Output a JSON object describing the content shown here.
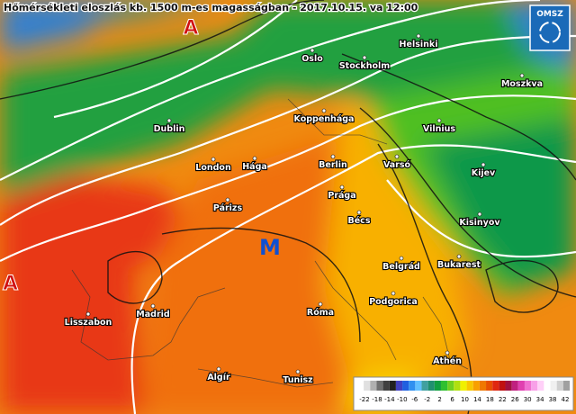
{
  "title": "Hőmérsékleti eloszlás kb. 1500 m-es magasságban - 2017.10.15. va 12:00",
  "logo": "OMSZ",
  "pressure_marks": {
    "highs": [
      "A",
      "A"
    ],
    "low": "M"
  },
  "cities": [
    "Helsinki",
    "Oslo",
    "Stockholm",
    "Moszkva",
    "Koppenhága",
    "Dublin",
    "Vilnius",
    "London",
    "Hága",
    "Berlin",
    "Varsó",
    "Kijev",
    "Prága",
    "Párizs",
    "Bécs",
    "Kisinyov",
    "Belgrád",
    "Bukarest",
    "Lisszabon",
    "Madrid",
    "Podgorica",
    "Róma",
    "Athén",
    "Algír",
    "Tunisz"
  ],
  "legend": {
    "labels": [
      -22,
      -18,
      -14,
      -10,
      -6,
      -2,
      2,
      6,
      10,
      14,
      18,
      22,
      26,
      30,
      34,
      38,
      42
    ],
    "colors": [
      "#ffffff",
      "#e0e0e0",
      "#b0b0b0",
      "#707070",
      "#404040",
      "#202020",
      "#4040c0",
      "#2060e0",
      "#3090f0",
      "#60c0ff",
      "#40a0a0",
      "#209070",
      "#10a040",
      "#30c030",
      "#70d020",
      "#b0e010",
      "#f0f000",
      "#f8c800",
      "#f8a000",
      "#f07800",
      "#e85000",
      "#e02810",
      "#c01010",
      "#a01040",
      "#c02080",
      "#e040b0",
      "#f070d0",
      "#f8a0e8",
      "#ffd0f8",
      "#ffffff",
      "#f0f0f0",
      "#d0d0d0",
      "#a0a0a0"
    ]
  }
}
